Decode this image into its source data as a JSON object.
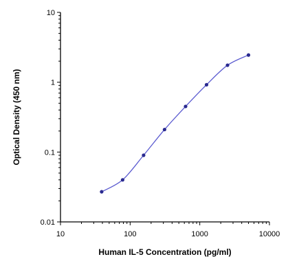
{
  "chart_data": {
    "type": "line",
    "title": "",
    "xlabel": "Human IL-5 Concentration (pg/ml)",
    "ylabel": "Optical Density (450 nm)",
    "x_scale": "log",
    "y_scale": "log",
    "xlim": [
      10,
      10000
    ],
    "ylim": [
      0.01,
      10
    ],
    "x_ticks": [
      10,
      100,
      1000,
      10000
    ],
    "x_tick_labels": [
      "10",
      "100",
      "1000",
      "10000"
    ],
    "y_ticks": [
      0.01,
      0.1,
      1,
      10
    ],
    "y_tick_labels": [
      "0.01",
      "0.1",
      "1",
      "10"
    ],
    "grid": false,
    "legend": "none",
    "series": [
      {
        "color": "#5b5bd0",
        "marker_color": "#2a2a8f",
        "x": [
          39,
          78,
          156,
          312,
          625,
          1250,
          2500,
          5000
        ],
        "y": [
          0.027,
          0.04,
          0.09,
          0.21,
          0.45,
          0.92,
          1.75,
          2.45
        ]
      }
    ]
  }
}
